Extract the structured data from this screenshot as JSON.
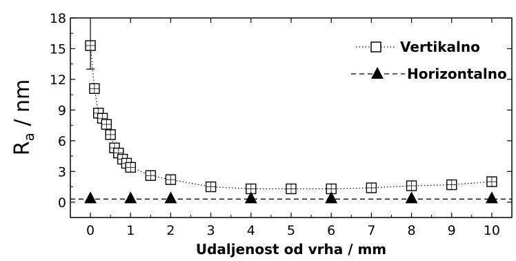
{
  "chart_data": {
    "type": "line",
    "xlabel": "Udaljenost od vrha / mm",
    "ylabel": {
      "main": "R",
      "sub": "a",
      "unit": " / nm"
    },
    "xlim": [
      -0.5,
      10.5
    ],
    "ylim": [
      -1.5,
      18
    ],
    "xticks": [
      0,
      1,
      2,
      3,
      4,
      5,
      6,
      7,
      8,
      9,
      10
    ],
    "yticks": [
      0,
      3,
      6,
      9,
      12,
      15,
      18
    ],
    "grid": false,
    "legend_position": "top-right",
    "series": [
      {
        "name": "Vertikalno",
        "marker": "open-square-cross",
        "line": "dotted",
        "color": "#000000",
        "x": [
          0,
          0.1,
          0.2,
          0.3,
          0.4,
          0.5,
          0.6,
          0.7,
          0.8,
          0.9,
          1,
          1.5,
          2,
          3,
          4,
          5,
          6,
          7,
          8,
          9,
          10
        ],
        "y": [
          15.3,
          11.1,
          8.7,
          8.2,
          7.6,
          6.6,
          5.3,
          4.8,
          4.2,
          3.8,
          3.4,
          2.6,
          2.2,
          1.5,
          1.3,
          1.3,
          1.3,
          1.4,
          1.6,
          1.7,
          2.0
        ],
        "error_top": [
          {
            "x": 0,
            "y_low": 13.0,
            "y_high": 17.6
          }
        ]
      },
      {
        "name": "Horizontalno",
        "marker": "filled-triangle",
        "line": "dashed",
        "color": "#000000",
        "x": [
          0,
          1,
          2,
          4,
          6,
          8,
          10
        ],
        "y": [
          0.3,
          0.3,
          0.3,
          0.3,
          0.3,
          0.3,
          0.3
        ]
      }
    ]
  }
}
